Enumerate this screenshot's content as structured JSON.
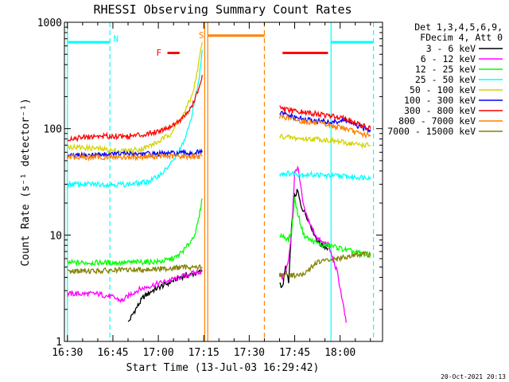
{
  "chart_data": {
    "type": "line",
    "title": "RHESSI Observing Summary Count Rates",
    "xlabel": "Start Time (13-Jul-03 16:29:42)",
    "ylabel": "Count Rate (s⁻¹ detector⁻¹)",
    "yscale": "log",
    "ylim": [
      1,
      1000
    ],
    "xlim_minutes": [
      -1,
      104
    ],
    "x_ticks": [
      {
        "m": 0,
        "label": "16:30"
      },
      {
        "m": 15,
        "label": "16:45"
      },
      {
        "m": 30,
        "label": "17:00"
      },
      {
        "m": 45,
        "label": "17:15"
      },
      {
        "m": 60,
        "label": "17:30"
      },
      {
        "m": 75,
        "label": "17:45"
      },
      {
        "m": 90,
        "label": "18:00"
      }
    ],
    "y_ticks": [
      {
        "v": 1,
        "label": "1"
      },
      {
        "v": 10,
        "label": "10"
      },
      {
        "v": 100,
        "label": "100"
      },
      {
        "v": 1000,
        "label": "1000"
      }
    ],
    "legend_header": [
      "Det 1,3,4,5,6,9,",
      "FDecim 4, Att 0"
    ],
    "series": [
      {
        "name": "3 - 6 keV",
        "color": "#000000",
        "segments": [
          [
            [
              20,
              1.5
            ],
            [
              22,
              1.9
            ],
            [
              25,
              2.6
            ],
            [
              28,
              3.0
            ],
            [
              31,
              3.3
            ],
            [
              34,
              3.6
            ],
            [
              37,
              4.0
            ],
            [
              40,
              4.2
            ],
            [
              43,
              4.4
            ],
            [
              44.5,
              4.6
            ]
          ],
          [
            [
              70,
              3.6
            ],
            [
              71,
              3.2
            ],
            [
              72,
              5
            ],
            [
              73,
              3.5
            ],
            [
              74,
              12
            ],
            [
              75,
              23
            ],
            [
              76,
              26
            ],
            [
              77,
              19
            ],
            [
              78,
              17
            ],
            [
              79,
              15
            ],
            [
              80,
              13
            ],
            [
              81,
              11
            ],
            [
              82,
              9.5
            ],
            [
              83,
              8.5
            ],
            [
              84,
              8
            ],
            [
              85,
              7.8
            ],
            [
              86,
              7.5
            ]
          ]
        ]
      },
      {
        "name": "6 - 12 keV",
        "color": "#ff00ff",
        "segments": [
          [
            [
              0,
              2.8
            ],
            [
              5,
              2.8
            ],
            [
              10,
              2.8
            ],
            [
              15,
              2.6
            ],
            [
              18,
              2.4
            ],
            [
              21,
              2.8
            ],
            [
              24,
              3.1
            ],
            [
              27,
              3.3
            ],
            [
              30,
              3.5
            ],
            [
              33,
              3.7
            ],
            [
              36,
              3.9
            ],
            [
              39,
              4.2
            ],
            [
              42,
              4.4
            ],
            [
              44.5,
              4.6
            ]
          ],
          [
            [
              70,
              4.2
            ],
            [
              71,
              4.0
            ],
            [
              72,
              4.5
            ],
            [
              73,
              5.8
            ],
            [
              74,
              11
            ],
            [
              75,
              38
            ],
            [
              76,
              44
            ],
            [
              77,
              28
            ],
            [
              78,
              18
            ],
            [
              79,
              15
            ],
            [
              80,
              13
            ],
            [
              81,
              11
            ],
            [
              82,
              10
            ],
            [
              83,
              9
            ],
            [
              84,
              8.5
            ],
            [
              86,
              8.2
            ],
            [
              88,
              5.5
            ],
            [
              89,
              4.5
            ],
            [
              90,
              3.2
            ],
            [
              91,
              2.2
            ],
            [
              92,
              1.5
            ]
          ]
        ]
      },
      {
        "name": "12 - 25 keV",
        "color": "#00ff00",
        "segments": [
          [
            [
              0,
              5.5
            ],
            [
              10,
              5.5
            ],
            [
              20,
              5.5
            ],
            [
              25,
              5.6
            ],
            [
              30,
              5.6
            ],
            [
              33,
              5.8
            ],
            [
              36,
              6.2
            ],
            [
              39,
              7.5
            ],
            [
              41,
              9
            ],
            [
              42.5,
              11
            ],
            [
              43.5,
              15
            ],
            [
              44.5,
              22
            ]
          ],
          [
            [
              70,
              10
            ],
            [
              72,
              9.5
            ],
            [
              73,
              9
            ],
            [
              74,
              11
            ],
            [
              75,
              22
            ],
            [
              76,
              16
            ],
            [
              78,
              10
            ],
            [
              80,
              9
            ],
            [
              82,
              8.5
            ],
            [
              84,
              8
            ],
            [
              86,
              8
            ],
            [
              88,
              7.8
            ],
            [
              90,
              7.5
            ],
            [
              92,
              7.2
            ],
            [
              94,
              7
            ],
            [
              96,
              6.8
            ],
            [
              98,
              6.6
            ],
            [
              100,
              6.5
            ]
          ]
        ]
      },
      {
        "name": "25 - 50 keV",
        "color": "#00ffff",
        "segments": [
          [
            [
              0,
              30
            ],
            [
              10,
              30
            ],
            [
              20,
              30
            ],
            [
              25,
              31
            ],
            [
              28,
              33
            ],
            [
              30,
              36
            ],
            [
              32,
              40
            ],
            [
              35,
              50
            ],
            [
              38,
              70
            ],
            [
              40,
              100
            ],
            [
              42,
              180
            ],
            [
              43.5,
              300
            ],
            [
              44.5,
              550
            ]
          ],
          [
            [
              70,
              38
            ],
            [
              74,
              38
            ],
            [
              78,
              37
            ],
            [
              82,
              37
            ],
            [
              86,
              36
            ],
            [
              90,
              36
            ],
            [
              94,
              35
            ],
            [
              98,
              35
            ],
            [
              100,
              35
            ]
          ]
        ]
      },
      {
        "name": "50 - 100 keV",
        "color": "#d4d400",
        "segments": [
          [
            [
              0,
              68
            ],
            [
              10,
              65
            ],
            [
              15,
              62
            ],
            [
              20,
              62
            ],
            [
              25,
              65
            ],
            [
              30,
              75
            ],
            [
              34,
              90
            ],
            [
              38,
              130
            ],
            [
              41,
              200
            ],
            [
              42.5,
              300
            ],
            [
              43.5,
              450
            ],
            [
              44.5,
              650
            ]
          ],
          [
            [
              70,
              85
            ],
            [
              74,
              82
            ],
            [
              78,
              80
            ],
            [
              82,
              80
            ],
            [
              86,
              78
            ],
            [
              90,
              75
            ],
            [
              94,
              72
            ],
            [
              98,
              70
            ],
            [
              100,
              70
            ]
          ]
        ]
      },
      {
        "name": "100 - 300 keV",
        "color": "#0000ff",
        "segments": [
          [
            [
              0,
              55
            ],
            [
              10,
              57
            ],
            [
              20,
              58
            ],
            [
              30,
              58
            ],
            [
              40,
              59
            ],
            [
              44.5,
              60
            ]
          ],
          [
            [
              70,
              140
            ],
            [
              72,
              135
            ],
            [
              74,
              130
            ],
            [
              76,
              125
            ],
            [
              78,
              122
            ],
            [
              80,
              120
            ],
            [
              82,
              118
            ],
            [
              84,
              117
            ],
            [
              86,
              115
            ],
            [
              88,
              115
            ],
            [
              90,
              118
            ],
            [
              92,
              120
            ],
            [
              94,
              110
            ],
            [
              96,
              105
            ],
            [
              98,
              100
            ],
            [
              100,
              98
            ]
          ]
        ]
      },
      {
        "name": "300 - 800 keV",
        "color": "#ff0000",
        "segments": [
          [
            [
              0,
              80
            ],
            [
              10,
              85
            ],
            [
              20,
              85
            ],
            [
              25,
              88
            ],
            [
              30,
              95
            ],
            [
              34,
              105
            ],
            [
              38,
              125
            ],
            [
              41,
              160
            ],
            [
              43,
              220
            ],
            [
              44.5,
              320
            ]
          ],
          [
            [
              70,
              155
            ],
            [
              72,
              150
            ],
            [
              74,
              147
            ],
            [
              76,
              145
            ],
            [
              78,
              142
            ],
            [
              80,
              140
            ],
            [
              82,
              138
            ],
            [
              84,
              135
            ],
            [
              86,
              132
            ],
            [
              88,
              130
            ],
            [
              90,
              130
            ],
            [
              92,
              125
            ],
            [
              94,
              115
            ],
            [
              96,
              110
            ],
            [
              98,
              105
            ],
            [
              100,
              100
            ]
          ]
        ]
      },
      {
        "name": "800 - 7000 keV",
        "color": "#ff8000",
        "segments": [
          [
            [
              0,
              54
            ],
            [
              10,
              54
            ],
            [
              20,
              54
            ],
            [
              30,
              55
            ],
            [
              40,
              55
            ],
            [
              44.5,
              55
            ]
          ],
          [
            [
              70,
              130
            ],
            [
              72,
              128
            ],
            [
              74,
              124
            ],
            [
              76,
              120
            ],
            [
              78,
              117
            ],
            [
              80,
              115
            ],
            [
              82,
              113
            ],
            [
              84,
              110
            ],
            [
              86,
              108
            ],
            [
              88,
              105
            ],
            [
              90,
              103
            ],
            [
              92,
              100
            ],
            [
              94,
              95
            ],
            [
              96,
              90
            ],
            [
              98,
              88
            ],
            [
              100,
              85
            ]
          ]
        ]
      },
      {
        "name": "7000 - 15000 keV",
        "color": "#808000",
        "segments": [
          [
            [
              0,
              4.6
            ],
            [
              10,
              4.6
            ],
            [
              20,
              4.7
            ],
            [
              30,
              4.8
            ],
            [
              40,
              5
            ],
            [
              44.5,
              5
            ]
          ],
          [
            [
              70,
              4.2
            ],
            [
              74,
              4.2
            ],
            [
              78,
              4.2
            ],
            [
              82,
              5.5
            ],
            [
              86,
              5.8
            ],
            [
              90,
              6.0
            ],
            [
              94,
              6.5
            ],
            [
              98,
              6.6
            ],
            [
              100,
              6.5
            ]
          ]
        ]
      }
    ],
    "annotations": {
      "vertical_lines": [
        {
          "m": 0,
          "color": "#00ffff",
          "style": "solid"
        },
        {
          "m": 14,
          "color": "#00ffff",
          "style": "dashed"
        },
        {
          "m": 45.3,
          "color": "#ff8000",
          "style": "solid"
        },
        {
          "m": 46.3,
          "color": "#ff8000",
          "style": "solid"
        },
        {
          "m": 65,
          "color": "#ff8000",
          "style": "dashed"
        },
        {
          "m": 87,
          "color": "#00ffff",
          "style": "solid"
        },
        {
          "m": 101,
          "color": "#00ffff",
          "style": "dashed"
        }
      ],
      "bars": [
        {
          "name": "night-bar",
          "m0": 0,
          "m1": 14,
          "v": 650,
          "color": "#00ffff"
        },
        {
          "name": "night-bar",
          "m0": 87,
          "m1": 101,
          "v": 650,
          "color": "#00ffff"
        },
        {
          "name": "saa-bar",
          "m0": 46.3,
          "m1": 65,
          "v": 750,
          "color": "#ff8000"
        },
        {
          "name": "flare-bar",
          "m0": 33,
          "m1": 37,
          "v": 515,
          "color": "#ff0000"
        },
        {
          "name": "flare-bar",
          "m0": 71,
          "m1": 86,
          "v": 515,
          "color": "#ff0000"
        }
      ],
      "labels": [
        {
          "name": "night-label",
          "text": "N",
          "m": 16,
          "v": 700,
          "color": "#00ffff"
        },
        {
          "name": "saa-label",
          "text": "S",
          "m": 44.2,
          "v": 760,
          "color": "#ff8000"
        },
        {
          "name": "flare-label",
          "text": "F",
          "m": 30.2,
          "v": 520,
          "color": "#ff0000"
        }
      ]
    }
  },
  "timestamp": "20-Oct-2021 20:13"
}
